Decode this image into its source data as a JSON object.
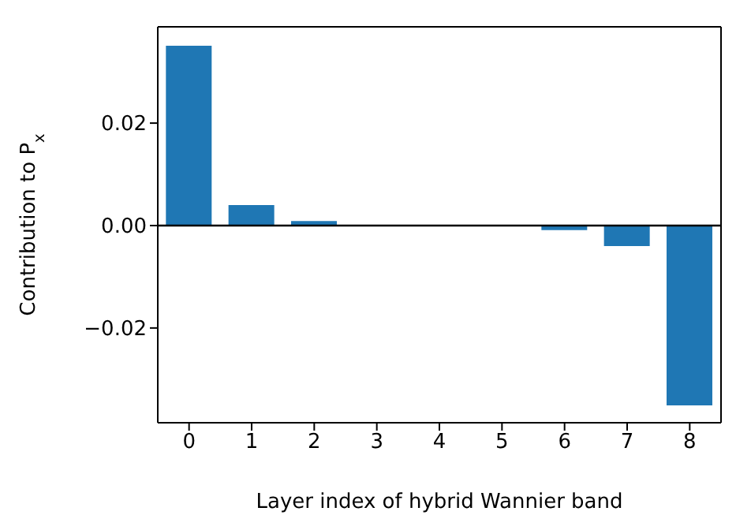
{
  "chart_data": {
    "type": "bar",
    "xlabel": "Layer index of hybrid Wannier band",
    "ylabel": "Contribution to P$_{x}$",
    "categories": [
      "0",
      "1",
      "2",
      "3",
      "4",
      "5",
      "6",
      "7",
      "8"
    ],
    "values": [
      0.0351,
      0.004,
      0.0009,
      null,
      0.0,
      null,
      -0.0009,
      -0.004,
      -0.0351
    ],
    "color": "#1f77b4",
    "ylim": [
      -0.0385,
      0.0388
    ],
    "yticks": [
      {
        "value": -0.02,
        "label": "−0.02"
      },
      {
        "value": 0,
        "label": "0.00"
      },
      {
        "value": 0.02,
        "label": "0.02"
      }
    ],
    "ref_lines": [
      {
        "axis": "y",
        "value": 0,
        "color": "#000000"
      }
    ],
    "grid": false,
    "legend": false
  }
}
